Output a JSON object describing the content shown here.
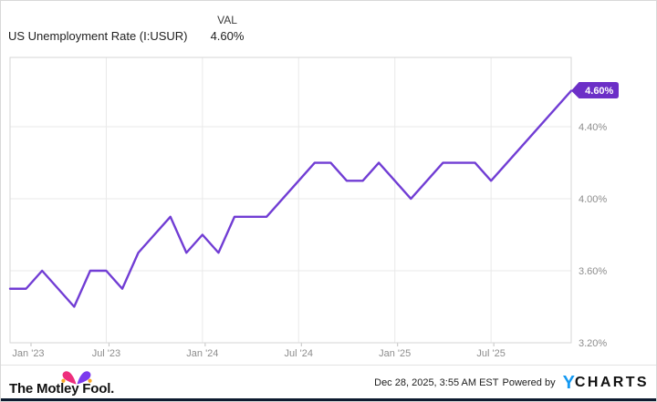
{
  "header": {
    "title": "US Unemployment Rate (I:USUR)",
    "val_label": "VAL",
    "val_value": "4.60%"
  },
  "chart_data": {
    "type": "line",
    "title": "US Unemployment Rate (I:USUR)",
    "unit": "percent",
    "categories": [
      "Jan 2023",
      "Feb 2023",
      "Mar 2023",
      "Apr 2023",
      "May 2023",
      "Jun 2023",
      "Jul 2023",
      "Aug 2023",
      "Sep 2023",
      "Oct 2023",
      "Nov 2023",
      "Dec 2023",
      "Jan 2024",
      "Feb 2024",
      "Mar 2024",
      "Apr 2024",
      "May 2024",
      "Jun 2024",
      "Jul 2024",
      "Aug 2024",
      "Sep 2024",
      "Oct 2024",
      "Nov 2024",
      "Dec 2024",
      "Jan 2025",
      "Feb 2025",
      "Mar 2025",
      "Apr 2025",
      "May 2025",
      "Jun 2025",
      "Jul 2025",
      "Aug 2025",
      "Sep 2025",
      "Oct 2025",
      "Nov 2025",
      "Dec 2025"
    ],
    "values": [
      3.5,
      3.5,
      3.6,
      3.5,
      3.4,
      3.6,
      3.6,
      3.5,
      3.7,
      3.8,
      3.9,
      3.7,
      3.8,
      3.7,
      3.9,
      3.9,
      3.9,
      4.0,
      4.1,
      4.2,
      4.2,
      4.1,
      4.1,
      4.2,
      4.1,
      4.0,
      4.1,
      4.2,
      4.2,
      4.2,
      4.1,
      4.2,
      4.3,
      4.4,
      4.5,
      4.6
    ],
    "x_tick_indices": [
      0,
      6,
      12,
      18,
      24,
      30
    ],
    "x_tick_labels": [
      "Jan '23",
      "Jul '23",
      "Jan '24",
      "Jul '24",
      "Jan '25",
      "Jul '25"
    ],
    "y_tick_values": [
      4.4,
      4.0,
      3.6,
      3.2
    ],
    "y_tick_labels": [
      "4.40%",
      "4.00%",
      "3.60%",
      "3.20%"
    ],
    "ylim": [
      3.2,
      4.785
    ],
    "grid": true,
    "legend_position": "none",
    "last_value_label": "4.60%",
    "line_color": "#713dd4",
    "badge_color": "#6c2fc7",
    "grid_color": "#e9e9e9",
    "border_color": "#d6d6d6",
    "tick_color": "#c2c2c2",
    "axis_text_color": "#8d8d8d"
  },
  "footer": {
    "brand": "The Motley Fool.",
    "timestamp": "Dec 28, 2025, 3:55 AM EST",
    "powered_by": "Powered by",
    "ycharts_y": "Y",
    "ycharts_rest": "CHARTS",
    "ycharts_blue": "#1499f2",
    "hat_pink": "#ed2e7c",
    "hat_purple": "#7c3aed",
    "hat_gold": "#f9a825",
    "bar_navy": "#0d1b2f"
  }
}
